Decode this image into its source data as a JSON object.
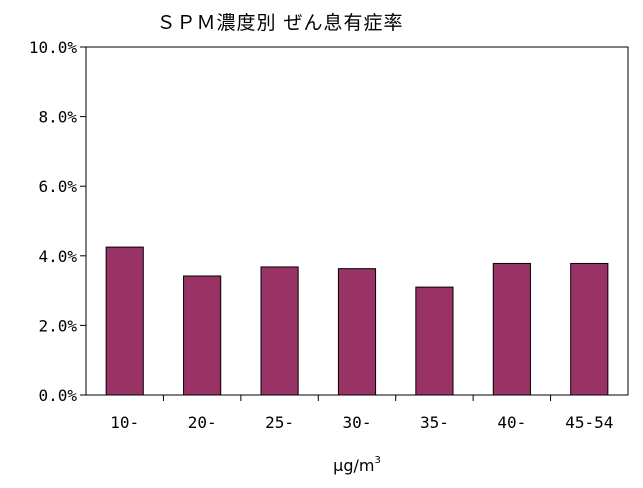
{
  "chart_data": {
    "type": "bar",
    "title": "ＳＰＭ濃度別 ぜん息有症率",
    "xlabel": "μg/m",
    "xlabel_superscript": "3",
    "ylabel": "",
    "categories": [
      "10-",
      "20-",
      "25-",
      "30-",
      "35-",
      "40-",
      "45-54"
    ],
    "values": [
      4.25,
      3.42,
      3.68,
      3.63,
      3.1,
      3.78,
      3.78
    ],
    "ylim": [
      0,
      10
    ],
    "yticks": [
      0,
      2,
      4,
      6,
      8,
      10
    ],
    "ytick_labels": [
      "0.0%",
      "2.0%",
      "4.0%",
      "6.0%",
      "8.0%",
      "10.0%"
    ],
    "grid": false,
    "legend": "none",
    "colors": {
      "bar_fill": "#993366",
      "bar_stroke": "#000000",
      "axis": "#000000"
    }
  }
}
